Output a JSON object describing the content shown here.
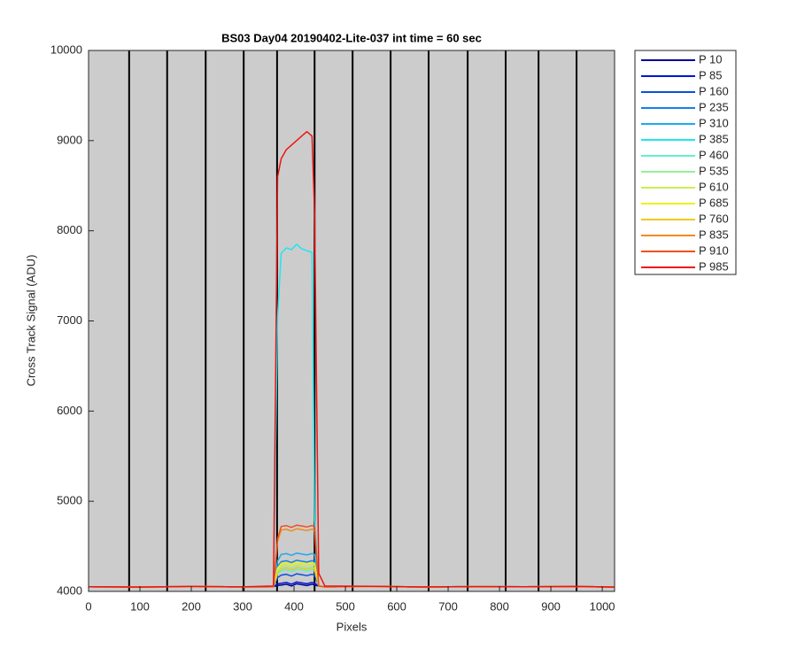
{
  "chart_data": {
    "type": "line",
    "title": "BS03 Day04 20190402-Lite-037 int time = 60 sec",
    "x_label": "Pixels",
    "y_label": "Cross Track Signal (ADU)",
    "xlim": [
      0,
      1024
    ],
    "ylim": [
      4000,
      10000
    ],
    "xticks": [
      0,
      100,
      200,
      300,
      400,
      500,
      600,
      700,
      800,
      900,
      1000
    ],
    "yticks": [
      4000,
      5000,
      6000,
      7000,
      8000,
      9000,
      10000
    ],
    "vlines": [
      79,
      153,
      228,
      302,
      367,
      440,
      514,
      588,
      662,
      738,
      812,
      876,
      950
    ],
    "legend": "outside-right",
    "x": [
      0,
      100,
      200,
      300,
      360,
      368,
      375,
      385,
      395,
      405,
      415,
      425,
      435,
      440,
      448,
      460,
      550,
      650,
      750,
      850,
      950,
      1023
    ],
    "series": [
      {
        "name": "P 10",
        "color": "#000096",
        "values": [
          4052,
          4048,
          4055,
          4050,
          4052,
          4066,
          4070,
          4080,
          4060,
          4085,
          4075,
          4065,
          4080,
          4070,
          4060,
          4050,
          4056,
          4049,
          4053,
          4051,
          4055,
          4048
        ]
      },
      {
        "name": "P 85",
        "color": "#0014d2",
        "values": [
          4052,
          4048,
          4055,
          4050,
          4052,
          4082,
          4090,
          4100,
          4080,
          4105,
          4095,
          4085,
          4100,
          4090,
          4060,
          4050,
          4056,
          4049,
          4053,
          4051,
          4055,
          4048
        ]
      },
      {
        "name": "P 160",
        "color": "#0a50dc",
        "values": [
          4052,
          4048,
          4055,
          4050,
          4052,
          4154,
          4180,
          4190,
          4170,
          4195,
          4185,
          4175,
          4190,
          4180,
          4060,
          4050,
          4056,
          4049,
          4053,
          4051,
          4055,
          4048
        ]
      },
      {
        "name": "P 235",
        "color": "#1482e6",
        "values": [
          4052,
          4048,
          4055,
          4050,
          4052,
          4274,
          4330,
          4340,
          4320,
          4345,
          4335,
          4325,
          4340,
          4330,
          4060,
          4050,
          4056,
          4049,
          4053,
          4051,
          4055,
          4048
        ]
      },
      {
        "name": "P 310",
        "color": "#1eaaf0",
        "values": [
          4052,
          4048,
          4055,
          4050,
          4052,
          4338,
          4410,
          4420,
          4400,
          4425,
          4415,
          4405,
          4420,
          4410,
          4060,
          4050,
          4056,
          4049,
          4053,
          4051,
          4055,
          4048
        ]
      },
      {
        "name": "P 385",
        "color": "#1ee6f0",
        "values": [
          4052,
          4048,
          4055,
          4050,
          4052,
          7050,
          7750,
          7810,
          7790,
          7850,
          7800,
          7780,
          7760,
          4800,
          4060,
          4050,
          4056,
          4049,
          4053,
          4051,
          4055,
          4048
        ]
      },
      {
        "name": "P 460",
        "color": "#64f0c8",
        "values": [
          4052,
          4048,
          4055,
          4050,
          4052,
          4194,
          4230,
          4240,
          4220,
          4245,
          4235,
          4225,
          4240,
          4230,
          4060,
          4050,
          4056,
          4049,
          4053,
          4051,
          4055,
          4048
        ]
      },
      {
        "name": "P 535",
        "color": "#96f096",
        "values": [
          4052,
          4048,
          4055,
          4050,
          4052,
          4218,
          4260,
          4270,
          4250,
          4275,
          4265,
          4255,
          4270,
          4260,
          4060,
          4050,
          4056,
          4049,
          4053,
          4051,
          4055,
          4048
        ]
      },
      {
        "name": "P 610",
        "color": "#c8f050",
        "values": [
          4052,
          4048,
          4055,
          4050,
          4052,
          4242,
          4290,
          4300,
          4280,
          4305,
          4295,
          4285,
          4300,
          4290,
          4060,
          4050,
          4056,
          4049,
          4053,
          4051,
          4055,
          4048
        ]
      },
      {
        "name": "P 685",
        "color": "#f0f01e",
        "values": [
          4052,
          4048,
          4055,
          4050,
          4052,
          4258,
          4310,
          4320,
          4300,
          4325,
          4315,
          4305,
          4320,
          4310,
          4060,
          4050,
          4056,
          4049,
          4053,
          4051,
          4055,
          4048
        ]
      },
      {
        "name": "P 760",
        "color": "#f0c81e",
        "values": [
          4052,
          4048,
          4055,
          4050,
          4052,
          4210,
          4250,
          4260,
          4240,
          4265,
          4255,
          4245,
          4260,
          4250,
          4060,
          4050,
          4056,
          4049,
          4053,
          4051,
          4055,
          4048
        ]
      },
      {
        "name": "P 835",
        "color": "#f08c1e",
        "values": [
          4052,
          4048,
          4055,
          4050,
          4052,
          4554,
          4680,
          4690,
          4670,
          4695,
          4685,
          4675,
          4690,
          4680,
          4060,
          4050,
          4056,
          4049,
          4053,
          4051,
          4055,
          4048
        ]
      },
      {
        "name": "P 910",
        "color": "#f0501e",
        "values": [
          4052,
          4048,
          4055,
          4050,
          4052,
          4586,
          4720,
          4730,
          4710,
          4735,
          4725,
          4715,
          4730,
          4720,
          4060,
          4050,
          4056,
          4049,
          4053,
          4051,
          4055,
          4048
        ]
      },
      {
        "name": "P 985",
        "color": "#f01414",
        "values": [
          4052,
          4048,
          4055,
          4050,
          4060,
          8600,
          8800,
          8900,
          8950,
          9000,
          9050,
          9100,
          9050,
          8200,
          4200,
          4060,
          4056,
          4049,
          4053,
          4051,
          4055,
          4048
        ]
      }
    ]
  }
}
